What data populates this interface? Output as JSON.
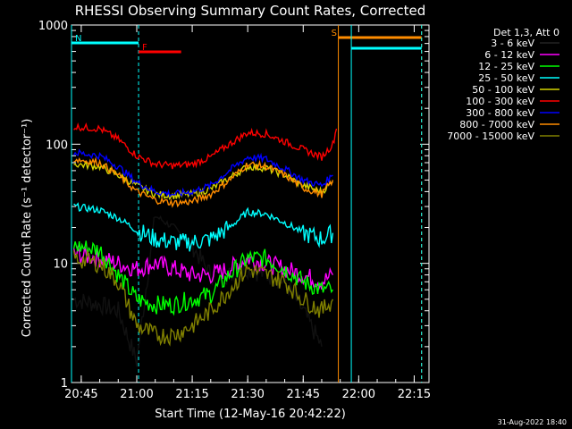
{
  "chart_data": {
    "type": "line",
    "title": "RHESSI Observing Summary Count Rates, Corrected",
    "xlabel": "Start Time (12-May-16 20:42:22)",
    "ylabel": "Corrected Count Rate (s⁻¹ detector⁻¹)",
    "y_scale": "log",
    "ylim": [
      1,
      1000
    ],
    "xlim": [
      "20:42:22",
      "22:19:00"
    ],
    "x_ticks": [
      "20:45",
      "21:00",
      "21:15",
      "21:30",
      "21:45",
      "22:00",
      "22:15"
    ],
    "y_ticks": [
      "1",
      "10",
      "100",
      "1000"
    ],
    "legend_title": "Det 1,3, Att 0",
    "legend_position": "right",
    "colors": {
      "background": "#000000",
      "axes": "#ffffff",
      "night": "#00ffff",
      "flare": "#ff0000",
      "saa": "#ff8c00"
    },
    "series": [
      {
        "name": "3 - 6 keV",
        "color": "#000000",
        "x": [
          "20:43",
          "20:50",
          "20:55",
          "21:00",
          "21:05",
          "21:10",
          "21:15",
          "21:20",
          "21:25",
          "21:30",
          "21:35",
          "21:40",
          "21:45",
          "21:50"
        ],
        "values": [
          5,
          4.5,
          4,
          1.5,
          25,
          20,
          14,
          8,
          8,
          9,
          8,
          7,
          4,
          2
        ]
      },
      {
        "name": "6 - 12 keV",
        "color": "#ff00ff",
        "x": [
          "20:43",
          "20:50",
          "20:55",
          "21:00",
          "21:05",
          "21:10",
          "21:15",
          "21:20",
          "21:25",
          "21:30",
          "21:35",
          "21:40",
          "21:45",
          "21:50",
          "21:53"
        ],
        "values": [
          12,
          11,
          10,
          9,
          10,
          9,
          8,
          8,
          9,
          11,
          10,
          9,
          8,
          7,
          8
        ]
      },
      {
        "name": "12 - 25 keV",
        "color": "#00ff00",
        "x": [
          "20:43",
          "20:50",
          "20:55",
          "21:00",
          "21:05",
          "21:10",
          "21:15",
          "21:20",
          "21:25",
          "21:30",
          "21:35",
          "21:40",
          "21:45",
          "21:50",
          "21:53"
        ],
        "values": [
          14,
          13,
          8,
          5,
          4.5,
          4.5,
          5,
          5.5,
          8,
          11,
          11,
          9,
          7,
          6,
          6
        ]
      },
      {
        "name": "25 - 50 keV",
        "color": "#00ffff",
        "x": [
          "20:43",
          "20:50",
          "20:55",
          "21:00",
          "21:05",
          "21:10",
          "21:15",
          "21:20",
          "21:25",
          "21:30",
          "21:35",
          "21:40",
          "21:45",
          "21:50",
          "21:53"
        ],
        "values": [
          30,
          28,
          24,
          19,
          16,
          15,
          15,
          16,
          20,
          27,
          26,
          22,
          18,
          16,
          18
        ]
      },
      {
        "name": "50 - 100 keV",
        "color": "#d6d600",
        "x": [
          "20:43",
          "20:50",
          "20:55",
          "21:00",
          "21:05",
          "21:10",
          "21:15",
          "21:20",
          "21:25",
          "21:30",
          "21:35",
          "21:40",
          "21:45",
          "21:50",
          "21:53"
        ],
        "values": [
          68,
          65,
          55,
          45,
          38,
          37,
          38,
          42,
          52,
          65,
          63,
          55,
          45,
          40,
          48
        ]
      },
      {
        "name": "100 - 300 keV",
        "color": "#ff0000",
        "x": [
          "20:43",
          "20:50",
          "20:55",
          "21:00",
          "21:05",
          "21:10",
          "21:15",
          "21:20",
          "21:25",
          "21:30",
          "21:35",
          "21:40",
          "21:45",
          "21:50",
          "21:53",
          "21:54"
        ],
        "values": [
          140,
          135,
          110,
          80,
          68,
          66,
          68,
          78,
          100,
          125,
          122,
          105,
          90,
          78,
          100,
          135
        ]
      },
      {
        "name": "300 - 800 keV",
        "color": "#0000ff",
        "x": [
          "20:43",
          "20:50",
          "20:55",
          "21:00",
          "21:05",
          "21:10",
          "21:15",
          "21:20",
          "21:25",
          "21:30",
          "21:35",
          "21:40",
          "21:45",
          "21:50",
          "21:53"
        ],
        "values": [
          85,
          80,
          65,
          48,
          40,
          38,
          40,
          45,
          60,
          78,
          75,
          62,
          50,
          45,
          55
        ]
      },
      {
        "name": "800 - 7000 keV",
        "color": "#ff8c00",
        "x": [
          "20:43",
          "20:50",
          "20:55",
          "21:00",
          "21:05",
          "21:10",
          "21:15",
          "21:20",
          "21:25",
          "21:30",
          "21:35",
          "21:40",
          "21:45",
          "21:50",
          "21:53"
        ],
        "values": [
          75,
          70,
          55,
          40,
          34,
          32,
          33,
          38,
          50,
          68,
          65,
          55,
          43,
          38,
          50
        ]
      },
      {
        "name": "7000 - 15000 keV",
        "color": "#808000",
        "x": [
          "20:43",
          "20:50",
          "20:55",
          "21:00",
          "21:05",
          "21:10",
          "21:15",
          "21:20",
          "21:25",
          "21:30",
          "21:35",
          "21:40",
          "21:45",
          "21:50",
          "21:53"
        ],
        "values": [
          11,
          10,
          7,
          3,
          2.5,
          2.5,
          3,
          4,
          6,
          9,
          8,
          7,
          5,
          4,
          5
        ]
      }
    ],
    "annotations": [
      {
        "label": "N",
        "color": "#00ffff",
        "kind": "night",
        "start": "20:42:22",
        "end": "21:00:30"
      },
      {
        "label": "F",
        "color": "#ff0000",
        "kind": "flare",
        "start": "21:00:30",
        "end": "21:12:00"
      },
      {
        "label": "S",
        "color": "#ff8c00",
        "kind": "saa",
        "start": "21:54:30",
        "end": "22:17:00"
      },
      {
        "label": "",
        "color": "#00ffff",
        "kind": "night",
        "start": "21:58:00",
        "end": "22:17:00"
      }
    ],
    "footer": "31-Aug-2022 18:40"
  }
}
